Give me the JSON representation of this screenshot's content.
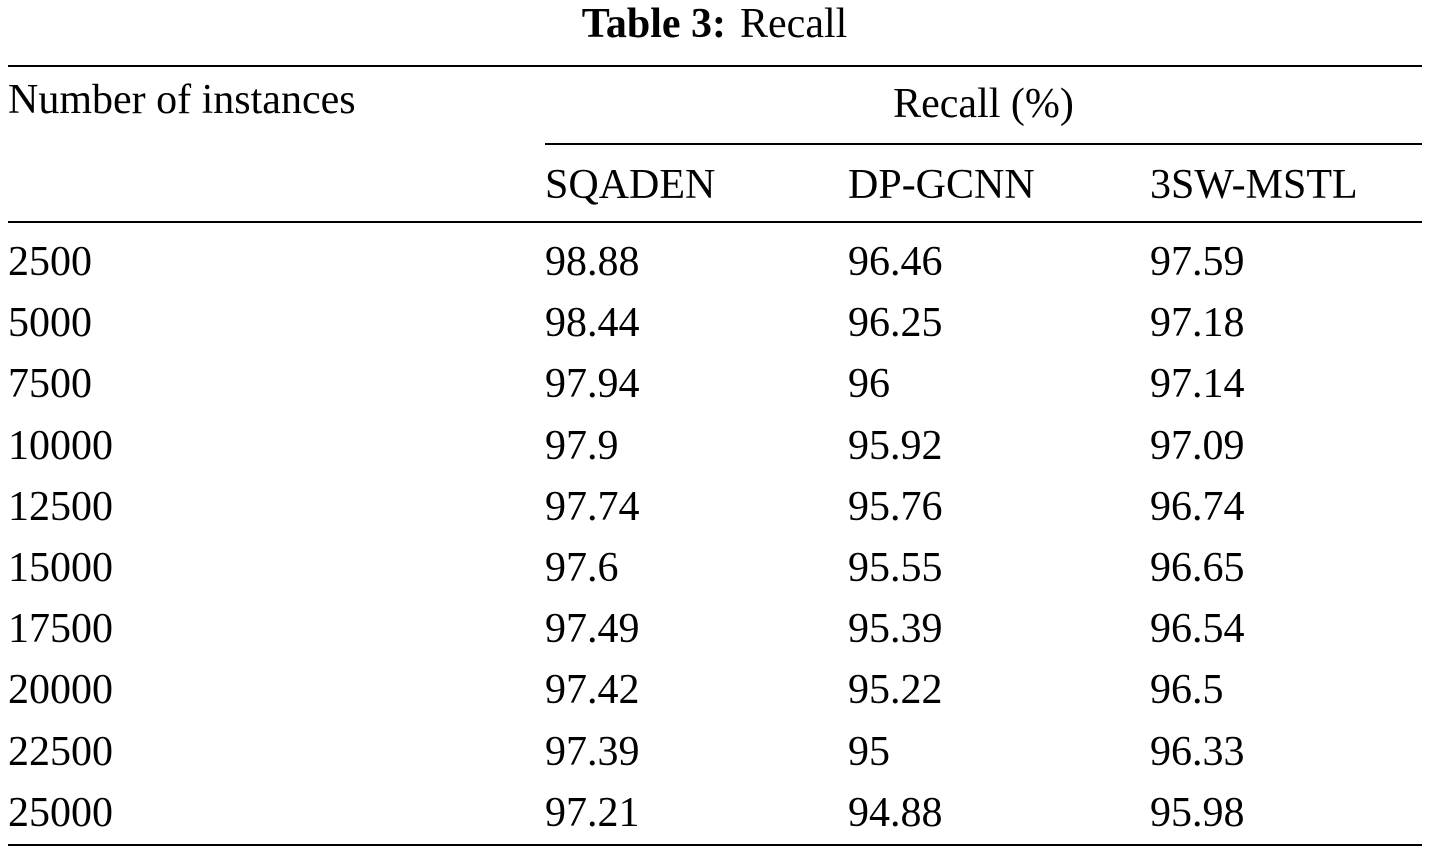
{
  "caption": {
    "label": "Table 3:",
    "title": "Recall"
  },
  "table": {
    "row_header": "Number of instances",
    "group_header": "Recall (%)",
    "columns": [
      "SQADEN",
      "DP-GCNN",
      "3SW-MSTL"
    ],
    "rows": [
      [
        "2500",
        "98.88",
        "96.46",
        "97.59"
      ],
      [
        "5000",
        "98.44",
        "96.25",
        "97.18"
      ],
      [
        "7500",
        "97.94",
        "96",
        "97.14"
      ],
      [
        "10000",
        "97.9",
        "95.92",
        "97.09"
      ],
      [
        "12500",
        "97.74",
        "95.76",
        "96.74"
      ],
      [
        "15000",
        "97.6",
        "95.55",
        "96.65"
      ],
      [
        "17500",
        "97.49",
        "95.39",
        "96.54"
      ],
      [
        "20000",
        "97.42",
        "95.22",
        "96.5"
      ],
      [
        "22500",
        "97.39",
        "95",
        "96.33"
      ],
      [
        "25000",
        "97.21",
        "94.88",
        "95.98"
      ]
    ]
  }
}
